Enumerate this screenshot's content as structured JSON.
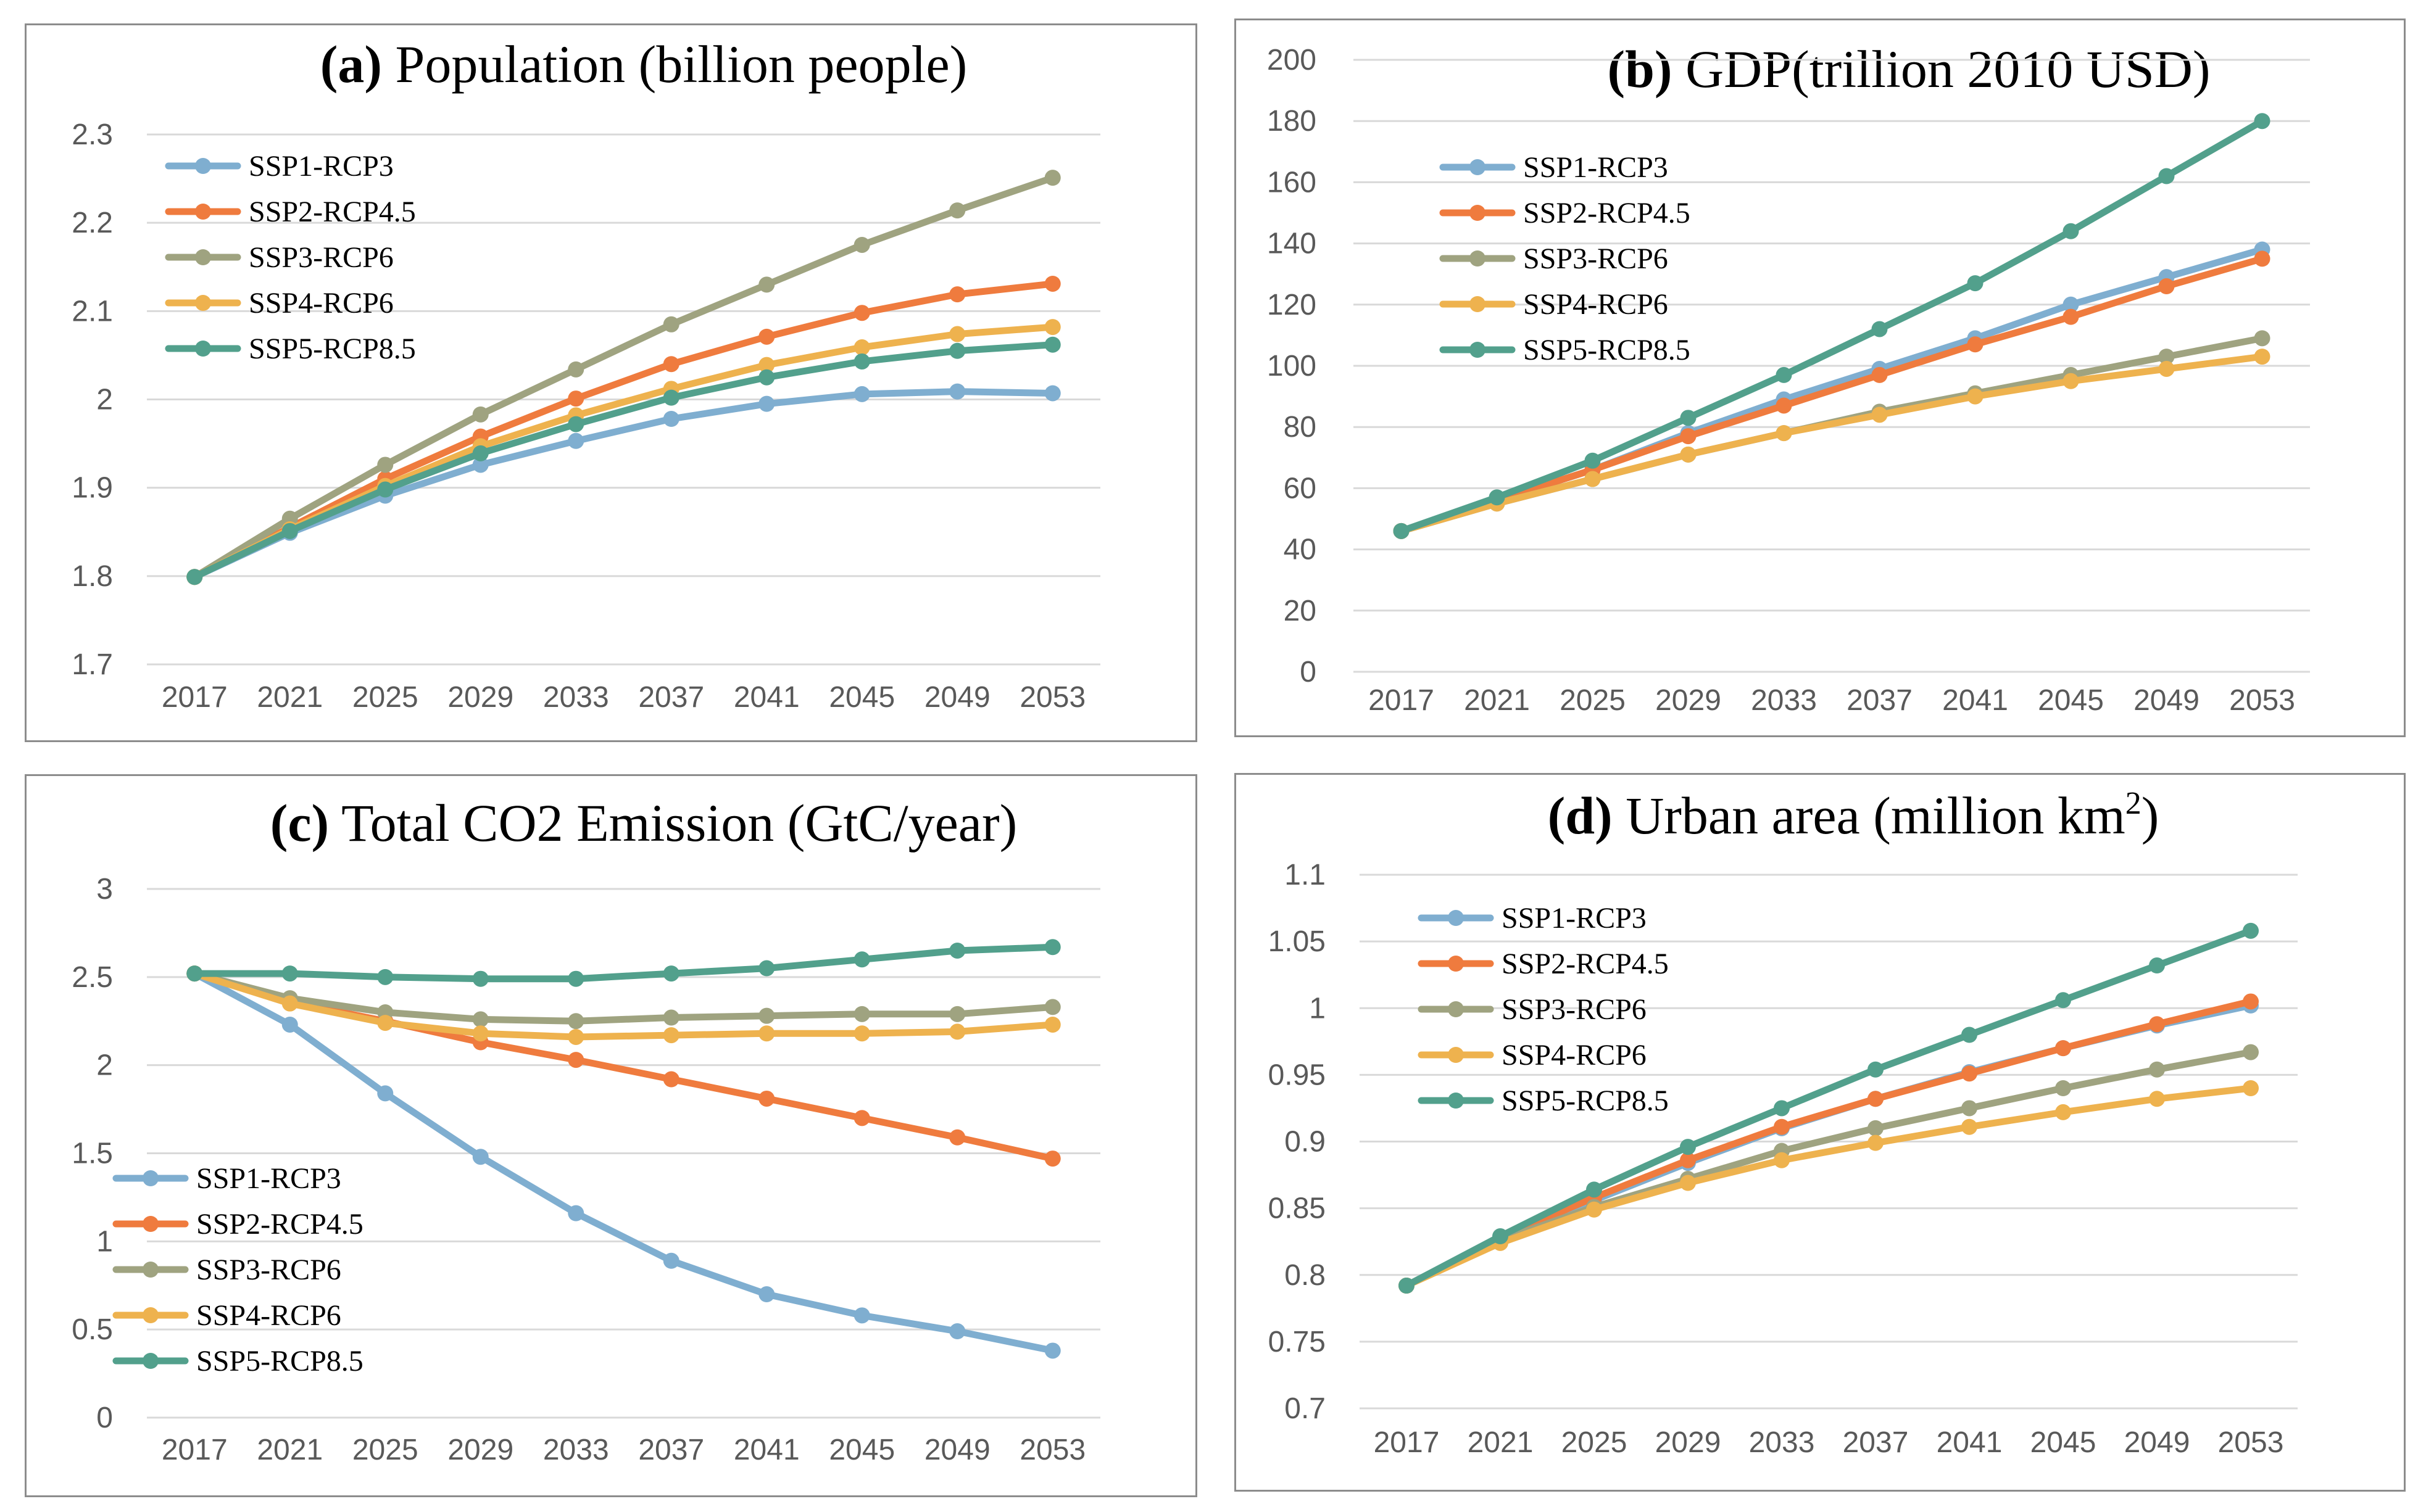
{
  "colors": {
    "ssp1": "#7faed0",
    "ssp2": "#ef7b3e",
    "ssp3": "#9fa380",
    "ssp4": "#eeb24e",
    "ssp5": "#52a08c",
    "grid": "#d9d9d9",
    "tick_text": "#595959",
    "border": "#8c8c8c"
  },
  "chart_data": [
    {
      "id": "a",
      "type": "line",
      "title_prefix": "(a)",
      "title_main": " Population (billion people)",
      "title_sup": "",
      "title_after": "",
      "x": [
        "2017",
        "2021",
        "2025",
        "2029",
        "2033",
        "2037",
        "2041",
        "2045",
        "2049",
        "2053"
      ],
      "ylim": [
        1.7,
        2.3
      ],
      "yticks": [
        1.7,
        1.8,
        1.9,
        2,
        2.1,
        2.2,
        2.3
      ],
      "ytick_labels": [
        "1.7",
        "1.8",
        "1.9",
        "2",
        "2.1",
        "2.2",
        "2.3"
      ],
      "grid": true,
      "legend_position": "top-left",
      "series": [
        {
          "name": "SSP1-RCP3",
          "color_key": "ssp1",
          "values": [
            1.799,
            1.849,
            1.891,
            1.926,
            1.953,
            1.978,
            1.995,
            2.006,
            2.009,
            2.007
          ]
        },
        {
          "name": "SSP2-RCP4.5",
          "color_key": "ssp2",
          "values": [
            1.799,
            1.855,
            1.91,
            1.958,
            2.001,
            2.04,
            2.071,
            2.098,
            2.119,
            2.131
          ]
        },
        {
          "name": "SSP3-RCP6",
          "color_key": "ssp3",
          "values": [
            1.799,
            1.865,
            1.926,
            1.983,
            2.034,
            2.085,
            2.13,
            2.175,
            2.214,
            2.251
          ]
        },
        {
          "name": "SSP4-RCP6",
          "color_key": "ssp4",
          "values": [
            1.799,
            1.853,
            1.902,
            1.947,
            1.982,
            2.012,
            2.039,
            2.059,
            2.074,
            2.082
          ]
        },
        {
          "name": "SSP5-RCP8.5",
          "color_key": "ssp5",
          "values": [
            1.799,
            1.851,
            1.898,
            1.939,
            1.972,
            2.002,
            2.025,
            2.043,
            2.055,
            2.062
          ]
        }
      ]
    },
    {
      "id": "b",
      "type": "line",
      "title_prefix": "(b)",
      "title_main": " GDP(trillion 2010 USD)",
      "title_sup": "",
      "title_after": "",
      "x": [
        "2017",
        "2021",
        "2025",
        "2029",
        "2033",
        "2037",
        "2041",
        "2045",
        "2049",
        "2053"
      ],
      "ylim": [
        0,
        200
      ],
      "yticks": [
        0,
        20,
        40,
        60,
        80,
        100,
        120,
        140,
        160,
        180,
        200
      ],
      "ytick_labels": [
        "0",
        "20",
        "40",
        "60",
        "80",
        "100",
        "120",
        "140",
        "160",
        "180",
        "200"
      ],
      "grid": true,
      "legend_position": "top-left",
      "series": [
        {
          "name": "SSP1-RCP3",
          "color_key": "ssp1",
          "values": [
            46,
            56,
            66,
            78,
            89,
            99,
            109,
            120,
            129,
            138
          ]
        },
        {
          "name": "SSP2-RCP4.5",
          "color_key": "ssp2",
          "values": [
            46,
            56,
            66,
            77,
            87,
            97,
            107,
            116,
            126,
            135
          ]
        },
        {
          "name": "SSP3-RCP6",
          "color_key": "ssp3",
          "values": [
            46,
            55,
            63,
            71,
            78,
            85,
            91,
            97,
            103,
            109
          ]
        },
        {
          "name": "SSP4-RCP6",
          "color_key": "ssp4",
          "values": [
            46,
            55,
            63,
            71,
            78,
            84,
            90,
            95,
            99,
            103
          ]
        },
        {
          "name": "SSP5-RCP8.5",
          "color_key": "ssp5",
          "values": [
            46,
            57,
            69,
            83,
            97,
            112,
            127,
            144,
            162,
            180
          ]
        }
      ]
    },
    {
      "id": "c",
      "type": "line",
      "title_prefix": "(c)",
      "title_main": " Total CO2 Emission (GtC/year)",
      "title_sup": "",
      "title_after": "",
      "x": [
        "2017",
        "2021",
        "2025",
        "2029",
        "2033",
        "2037",
        "2041",
        "2045",
        "2049",
        "2053"
      ],
      "ylim": [
        0,
        3
      ],
      "yticks": [
        0,
        0.5,
        1,
        1.5,
        2,
        2.5,
        3
      ],
      "ytick_labels": [
        "0",
        "0.5",
        "1",
        "1.5",
        "2",
        "2.5",
        "3"
      ],
      "grid": true,
      "legend_position": "bottom-left",
      "series": [
        {
          "name": "SSP1-RCP3",
          "color_key": "ssp1",
          "values": [
            2.52,
            2.23,
            1.84,
            1.48,
            1.16,
            0.89,
            0.7,
            0.58,
            0.49,
            0.38
          ]
        },
        {
          "name": "SSP2-RCP4.5",
          "color_key": "ssp2",
          "values": [
            2.52,
            2.36,
            2.25,
            2.13,
            2.03,
            1.92,
            1.81,
            1.7,
            1.59,
            1.47
          ]
        },
        {
          "name": "SSP3-RCP6",
          "color_key": "ssp3",
          "values": [
            2.52,
            2.38,
            2.3,
            2.26,
            2.25,
            2.27,
            2.28,
            2.29,
            2.29,
            2.33
          ]
        },
        {
          "name": "SSP4-RCP6",
          "color_key": "ssp4",
          "values": [
            2.52,
            2.35,
            2.24,
            2.18,
            2.16,
            2.17,
            2.18,
            2.18,
            2.19,
            2.23
          ]
        },
        {
          "name": "SSP5-RCP8.5",
          "color_key": "ssp5",
          "values": [
            2.52,
            2.52,
            2.5,
            2.49,
            2.49,
            2.52,
            2.55,
            2.6,
            2.65,
            2.67
          ]
        }
      ]
    },
    {
      "id": "d",
      "type": "line",
      "title_prefix": "(d)",
      "title_main": " Urban area (million km",
      "title_sup": "2",
      "title_after": ")",
      "x": [
        "2017",
        "2021",
        "2025",
        "2029",
        "2033",
        "2037",
        "2041",
        "2045",
        "2049",
        "2053"
      ],
      "ylim": [
        0.7,
        1.1
      ],
      "yticks": [
        0.7,
        0.75,
        0.8,
        0.85,
        0.9,
        0.95,
        1,
        1.05,
        1.1
      ],
      "ytick_labels": [
        "0.7",
        "0.75",
        "0.8",
        "0.85",
        "0.9",
        "0.95",
        "1",
        "1.05",
        "1.1"
      ],
      "grid": true,
      "legend_position": "top-left",
      "series": [
        {
          "name": "SSP1-RCP3",
          "color_key": "ssp1",
          "values": [
            0.792,
            0.828,
            0.856,
            0.884,
            0.91,
            0.932,
            0.952,
            0.97,
            0.987,
            1.002
          ]
        },
        {
          "name": "SSP2-RCP4.5",
          "color_key": "ssp2",
          "values": [
            0.792,
            0.828,
            0.858,
            0.886,
            0.911,
            0.932,
            0.951,
            0.97,
            0.988,
            1.005
          ]
        },
        {
          "name": "SSP3-RCP6",
          "color_key": "ssp3",
          "values": [
            0.792,
            0.826,
            0.851,
            0.872,
            0.893,
            0.91,
            0.925,
            0.94,
            0.954,
            0.967
          ]
        },
        {
          "name": "SSP4-RCP6",
          "color_key": "ssp4",
          "values": [
            0.792,
            0.824,
            0.849,
            0.869,
            0.886,
            0.899,
            0.911,
            0.922,
            0.932,
            0.94
          ]
        },
        {
          "name": "SSP5-RCP8.5",
          "color_key": "ssp5",
          "values": [
            0.792,
            0.829,
            0.864,
            0.896,
            0.925,
            0.954,
            0.98,
            1.006,
            1.032,
            1.058
          ]
        }
      ]
    }
  ]
}
